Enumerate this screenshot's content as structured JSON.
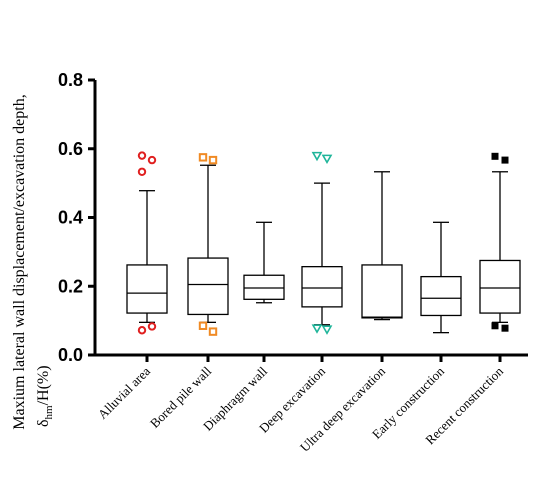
{
  "chart_data": {
    "type": "box",
    "ylabel_line1": "Maxium lateral wall displacement/excavation depth,",
    "ylabel_symbol": "δ",
    "ylabel_sub": "hm",
    "ylabel_tail": "/H(%)",
    "ylim": [
      0,
      0.8
    ],
    "yticks": [
      "0.0",
      "0.2",
      "0.4",
      "0.6",
      "0.8"
    ],
    "grid": false,
    "categories": [
      "Alluvial area",
      "Bored pile wall",
      "Diaphragm wall",
      "Deep excavation",
      "Ultra deep excavation",
      "Early construction",
      "Recent construction"
    ],
    "boxes": [
      {
        "category": "Alluvial area",
        "min": 0.095,
        "q1": 0.122,
        "median": 0.18,
        "q3": 0.262,
        "max": 0.478,
        "outliers": [
          0.58,
          0.567,
          0.533,
          0.083,
          0.072
        ],
        "marker": "circle",
        "color": "#e02020"
      },
      {
        "category": "Bored pile wall",
        "min": 0.095,
        "q1": 0.118,
        "median": 0.205,
        "q3": 0.282,
        "max": 0.552,
        "outliers": [
          0.575,
          0.567,
          0.085,
          0.068
        ],
        "marker": "square-open",
        "color": "#f08a24"
      },
      {
        "category": "Diaphragm wall",
        "min": 0.152,
        "q1": 0.162,
        "median": 0.195,
        "q3": 0.232,
        "max": 0.386,
        "outliers": [],
        "marker": "none",
        "color": "#000000"
      },
      {
        "category": "Deep excavation",
        "min": 0.088,
        "q1": 0.14,
        "median": 0.195,
        "q3": 0.257,
        "max": 0.5,
        "outliers": [
          0.58,
          0.572,
          0.078,
          0.075
        ],
        "marker": "triangle-down-open",
        "color": "#1fb59a"
      },
      {
        "category": "Ultra deep excavation",
        "min": 0.103,
        "q1": 0.108,
        "median": 0.11,
        "q3": 0.262,
        "max": 0.533,
        "outliers": [],
        "marker": "none",
        "color": "#000000"
      },
      {
        "category": "Early construction",
        "min": 0.065,
        "q1": 0.115,
        "median": 0.165,
        "q3": 0.228,
        "max": 0.386,
        "outliers": [],
        "marker": "none",
        "color": "#000000"
      },
      {
        "category": "Recent construction",
        "min": 0.095,
        "q1": 0.122,
        "median": 0.195,
        "q3": 0.275,
        "max": 0.533,
        "outliers": [
          0.578,
          0.567,
          0.085,
          0.078
        ],
        "marker": "square-filled",
        "color": "#000000"
      }
    ]
  }
}
